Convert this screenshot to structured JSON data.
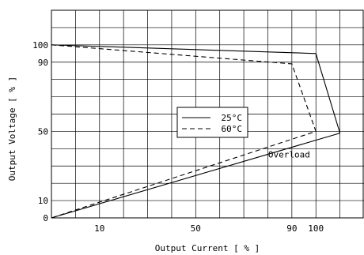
{
  "chart_data": {
    "type": "line",
    "xlabel": "Output Current [ % ]",
    "ylabel": "Output Voltage [ % ]",
    "xlim": [
      -10,
      120
    ],
    "ylim": [
      0,
      120
    ],
    "x_ticks": [
      10,
      50,
      90,
      100
    ],
    "y_ticks": [
      0,
      10,
      50,
      90,
      100
    ],
    "grid": true,
    "legend_position": "center",
    "annotations": [
      {
        "text": "Overload",
        "x": 90,
        "y": 35
      }
    ],
    "series": [
      {
        "name": "25°C",
        "style": "solid",
        "points": [
          [
            -10,
            100
          ],
          [
            100,
            95
          ],
          [
            110,
            49
          ],
          [
            -10,
            0
          ]
        ]
      },
      {
        "name": "60°C",
        "style": "dashed",
        "points": [
          [
            -10,
            100
          ],
          [
            90,
            89
          ],
          [
            100,
            50
          ],
          [
            -10,
            0
          ]
        ]
      }
    ]
  }
}
